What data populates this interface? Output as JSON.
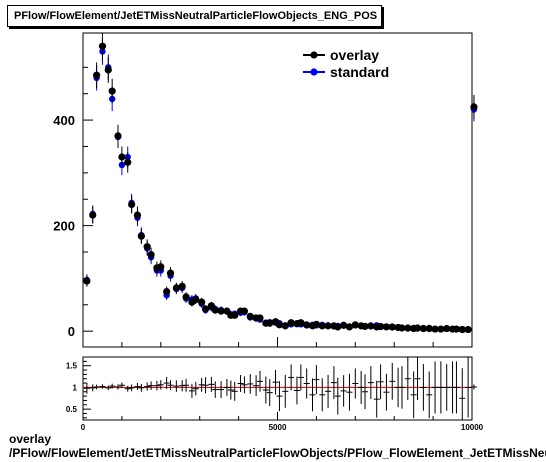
{
  "title": "PFlow/FlowElement/JetETMissNeutralParticleFlowObjects_ENG_POS",
  "footer": {
    "series": "overlay",
    "path": "/PFlow/FlowElement/JetETMissNeutralParticleFlowObjects/PFlow_FlowElement_JetETMissNeutralParticleFlowObjects_ENG_POS"
  },
  "colors": {
    "overlay": "#000000",
    "standard": "#0000ff",
    "ratio_line": "#cc0000"
  },
  "chart_data": [
    {
      "type": "scatter",
      "title": "PFlow/FlowElement/JetETMissNeutralParticleFlowObjects_ENG_POS",
      "xlim": [
        0,
        10000
      ],
      "ylim": [
        -30,
        565
      ],
      "yticks": [
        0,
        200,
        400
      ],
      "yticklabels": [
        "0",
        "200",
        "400"
      ],
      "legend": {
        "position": "top-right",
        "entries": [
          "overlay",
          "standard"
        ]
      },
      "grid": false,
      "x": [
        100,
        250,
        350,
        500,
        650,
        750,
        900,
        1000,
        1150,
        1250,
        1400,
        1500,
        1650,
        1750,
        1900,
        2000,
        2150,
        2250,
        2400,
        2550,
        2650,
        2800,
        2900,
        3050,
        3150,
        3300,
        3400,
        3550,
        3700,
        3800,
        3900,
        4050,
        4150,
        4300,
        4450,
        4550,
        4700,
        4800,
        4950,
        5050,
        5200,
        5350,
        5500,
        5600,
        5750,
        5900,
        6000,
        6150,
        6300,
        6450,
        6550,
        6700,
        6850,
        7000,
        7150,
        7250,
        7400,
        7550,
        7650,
        7800,
        7950,
        8100,
        8200,
        8350,
        8500,
        8600,
        8750,
        8900,
        9050,
        9200,
        9350,
        9500,
        9600,
        9750,
        9900,
        10050
      ],
      "series": [
        {
          "name": "overlay",
          "values": [
            95,
            220,
            485,
            540,
            495,
            455,
            370,
            330,
            320,
            240,
            220,
            180,
            160,
            145,
            120,
            122,
            75,
            110,
            82,
            85,
            65,
            55,
            60,
            55,
            42,
            48,
            40,
            38,
            38,
            30,
            30,
            38,
            38,
            28,
            25,
            25,
            15,
            15,
            18,
            12,
            10,
            16,
            14,
            16,
            12,
            10,
            13,
            10,
            10,
            10,
            8,
            11,
            8,
            12,
            10,
            9,
            10,
            8,
            9,
            8,
            8,
            7,
            6,
            6,
            5,
            6,
            5,
            5,
            4,
            4,
            5,
            4,
            4,
            3,
            3,
            425
          ]
        },
        {
          "name": "standard",
          "values": [
            97,
            222,
            480,
            530,
            500,
            440,
            368,
            315,
            330,
            243,
            215,
            182,
            157,
            140,
            115,
            115,
            68,
            105,
            80,
            82,
            62,
            60,
            62,
            52,
            40,
            45,
            42,
            40,
            38,
            32,
            33,
            35,
            36,
            26,
            24,
            22,
            16,
            17,
            16,
            15,
            11,
            13,
            15,
            13,
            11,
            12,
            11,
            12,
            11,
            9,
            10,
            12,
            9,
            11,
            10,
            10,
            9,
            11,
            8,
            9,
            7,
            7,
            6,
            5,
            6,
            5,
            5,
            6,
            4,
            4,
            5,
            4,
            4,
            4,
            3,
            420
          ]
        }
      ]
    },
    {
      "type": "scatter",
      "ylabel": "",
      "xlim": [
        0,
        10000
      ],
      "ylim": [
        0.25,
        1.7
      ],
      "yticks": [
        0.5,
        1,
        1.5
      ],
      "yticklabels": [
        "0.5",
        "1",
        "1.5"
      ],
      "xticks": [
        0,
        5000,
        10000
      ],
      "xticklabels": [
        "0",
        "5000",
        "10000"
      ],
      "reference_line": 1,
      "x": [
        100,
        250,
        350,
        500,
        650,
        750,
        900,
        1000,
        1150,
        1250,
        1400,
        1500,
        1650,
        1750,
        1900,
        2000,
        2150,
        2250,
        2400,
        2550,
        2650,
        2800,
        2900,
        3050,
        3150,
        3300,
        3400,
        3550,
        3700,
        3800,
        3900,
        4050,
        4150,
        4300,
        4450,
        4550,
        4700,
        4800,
        4950,
        5050,
        5200,
        5350,
        5500,
        5600,
        5750,
        5900,
        6000,
        6150,
        6300,
        6450,
        6550,
        6700,
        6850,
        7000,
        7150,
        7250,
        7400,
        7550,
        7650,
        7800,
        7950,
        8100,
        8200,
        8350,
        8500,
        8600,
        8750,
        8900,
        9050,
        9200,
        9350,
        9500,
        9600,
        9750,
        9900,
        10050
      ],
      "values": [
        0.98,
        0.99,
        1.01,
        1.02,
        0.99,
        1.03,
        1.01,
        1.05,
        0.97,
        0.99,
        1.02,
        0.99,
        1.02,
        1.04,
        1.04,
        1.06,
        1.1,
        1.05,
        1.03,
        1.04,
        1.05,
        0.92,
        0.97,
        1.06,
        1.05,
        1.07,
        0.95,
        0.95,
        1.0,
        0.94,
        0.91,
        1.09,
        1.06,
        1.08,
        1.04,
        1.14,
        0.94,
        0.88,
        1.12,
        0.8,
        0.91,
        1.23,
        0.93,
        1.23,
        1.09,
        0.83,
        1.18,
        0.83,
        0.91,
        1.11,
        0.8,
        0.92,
        0.89,
        1.09,
        1.0,
        0.9,
        1.11,
        0.73,
        1.13,
        0.89,
        1.14,
        1.0,
        1.0,
        1.2,
        0.83,
        1.2,
        1.0,
        0.83,
        1.0,
        1.0,
        1.0,
        1.0,
        1.0,
        0.75,
        1.0,
        1.01
      ]
    }
  ]
}
